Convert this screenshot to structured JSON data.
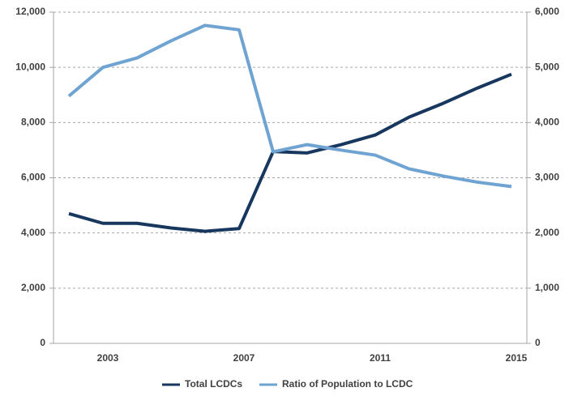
{
  "chart_data": {
    "type": "line",
    "categories": [
      null,
      "2003",
      null,
      null,
      null,
      "2007",
      null,
      null,
      null,
      "2011",
      null,
      null,
      null,
      "2015"
    ],
    "series": [
      {
        "name": "Total LCDCs",
        "color": "#17375e",
        "values": [
          4700,
          4350,
          4350,
          4180,
          4060,
          4160,
          6950,
          6900,
          7200,
          7550,
          8200,
          8700,
          9250,
          9750
        ]
      },
      {
        "name": "Ratio of Population to LCDC",
        "color": "#6fa3d2",
        "axis": "y2",
        "values": [
          4480,
          5000,
          5170,
          5480,
          5760,
          5680,
          3470,
          3600,
          3500,
          3410,
          3160,
          3030,
          2920,
          2840
        ]
      }
    ],
    "ylim": [
      0,
      12000
    ],
    "yticks": [
      0,
      {
        "value": 2000,
        "label": "2,000"
      },
      {
        "value": 4000,
        "label": "4,000"
      },
      {
        "value": 6000,
        "label": "6,000"
      },
      {
        "value": 8000,
        "label": "8,000"
      },
      {
        "value": 10000,
        "label": "10,000"
      },
      {
        "value": 12000,
        "label": "12,000"
      }
    ],
    "y2lim": [
      0,
      6000
    ],
    "y2ticks": [
      0,
      {
        "value": 1000,
        "label": "1,000"
      },
      {
        "value": 2000,
        "label": "2,000"
      },
      {
        "value": 3000,
        "label": "3,000"
      },
      {
        "value": 4000,
        "label": "4,000"
      },
      {
        "value": 5000,
        "label": "5,000"
      },
      {
        "value": 6000,
        "label": "6,000"
      }
    ],
    "grid": true,
    "legend": "bottom"
  }
}
